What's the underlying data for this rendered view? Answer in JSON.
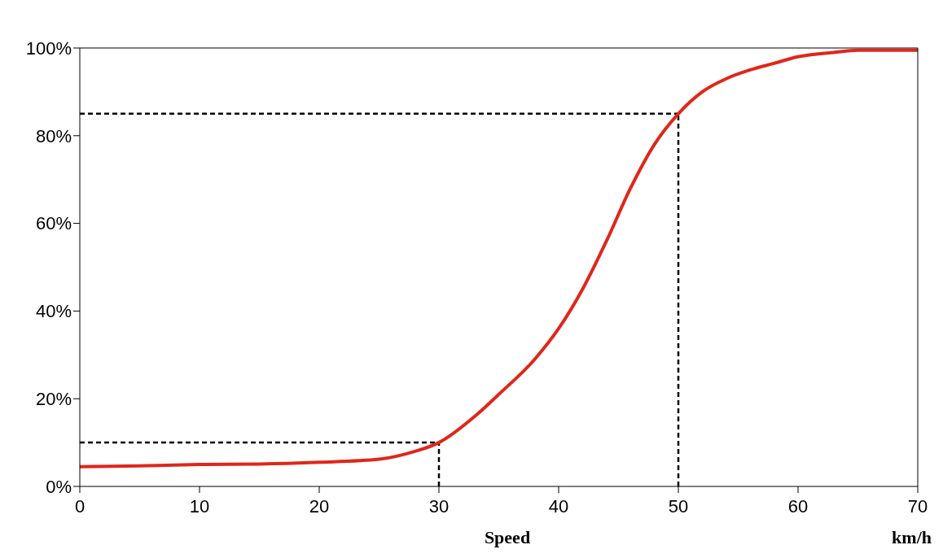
{
  "chart_data": {
    "type": "line",
    "xlabel": "Speed",
    "annotations": [
      "km/h"
    ],
    "x": [
      0,
      5,
      10,
      15,
      20,
      25,
      28,
      30,
      33,
      35,
      38,
      40,
      42,
      44,
      46,
      48,
      50,
      52,
      54,
      56,
      58,
      60,
      63,
      65,
      70
    ],
    "series": [
      {
        "color": "#e0261a",
        "values": [
          4.5,
          4.7,
          5,
          5.1,
          5.5,
          6.2,
          8,
          10,
          16,
          21,
          29,
          36,
          45,
          56,
          68,
          78,
          85,
          90,
          93,
          95,
          96.5,
          98,
          99,
          99.5,
          99.5
        ]
      }
    ],
    "xlim": [
      0,
      70
    ],
    "xticks": [
      0,
      10,
      20,
      30,
      40,
      50,
      60,
      70
    ],
    "ylim": [
      0,
      100
    ],
    "yticks": [
      {
        "value": 0,
        "label": "0%"
      },
      {
        "value": 20,
        "label": "20%"
      },
      {
        "value": 40,
        "label": "40%"
      },
      {
        "value": 60,
        "label": "60%"
      },
      {
        "value": 80,
        "label": "80%"
      },
      {
        "value": 100,
        "label": "100%"
      }
    ],
    "ref_lines": [
      {
        "axis": "y",
        "value": 10,
        "line_style": "dashed",
        "color": "#000000"
      },
      {
        "axis": "x",
        "value": 30,
        "line_style": "dashed",
        "color": "#000000"
      },
      {
        "axis": "y",
        "value": 85,
        "line_style": "dashed",
        "color": "#000000"
      },
      {
        "axis": "x",
        "value": 50,
        "line_style": "dashed",
        "color": "#000000"
      }
    ],
    "grid": false,
    "legend": false,
    "marker": "none",
    "line_style": "solid"
  }
}
